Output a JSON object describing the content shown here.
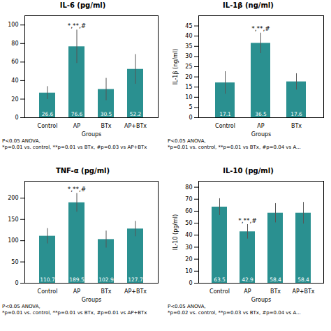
{
  "chart_data": [
    {
      "type": "bar",
      "title": "IL-6 (pg/ml)",
      "xlabel": "Groups",
      "categories": [
        "Control",
        "AP",
        "BTx",
        "AP+BTx"
      ],
      "values": [
        26.6,
        76.6,
        30.5,
        52.2
      ],
      "errors": [
        7,
        18,
        12,
        16
      ],
      "color": "#2a9090",
      "data_labels": true,
      "grid": false,
      "ylim": [
        0,
        110
      ],
      "yticks": [
        0,
        20,
        40,
        60,
        80,
        100
      ],
      "annotations": [
        {
          "text": "*,**,#",
          "x": "AP"
        },
        {
          "text": "P<0.05 ANOVA,"
        },
        {
          "text": "*p=0.01 vs. control, **p=0.01 vs BTx, #p=0.03 vs AP+BTx"
        }
      ]
    },
    {
      "type": "bar",
      "title": "IL-1β (ng/ml)",
      "ylabel": "IL-1β (ng/ml)",
      "xlabel": "Groups",
      "categories": [
        "Control",
        "AP",
        "BTx"
      ],
      "values": [
        17.1,
        36.5,
        17.6
      ],
      "errors": [
        5.5,
        5,
        4
      ],
      "color": "#2a9090",
      "data_labels": true,
      "grid": false,
      "ylim": [
        0,
        50
      ],
      "yticks": [
        0,
        5,
        10,
        15,
        20,
        25,
        30,
        35,
        40,
        45
      ],
      "annotations": [
        {
          "text": "*,**,#",
          "x": "AP"
        },
        {
          "text": "P<0.05 ANOVA,"
        },
        {
          "text": "*p=0.01 vs. control, **p=0.01 vs BTx, #p=0.04 vs A..."
        }
      ]
    },
    {
      "type": "bar",
      "title": "TNF-α (pg/ml)",
      "xlabel": "Groups",
      "categories": [
        "Control",
        "AP",
        "BTx",
        "AP+BTx"
      ],
      "values": [
        110.7,
        189.5,
        102.9,
        127.7
      ],
      "errors": [
        18,
        22,
        20,
        18
      ],
      "color": "#2a9090",
      "data_labels": true,
      "grid": false,
      "ylim": [
        0,
        240
      ],
      "yticks": [
        0,
        50,
        100,
        150,
        200
      ],
      "annotations": [
        {
          "text": "*,**,#",
          "x": "AP"
        },
        {
          "text": "P<0.05 ANOVA,"
        },
        {
          "text": "*p=0.01 vs. control, **p=0.01 vs BTx, #p=0.01 vs AP+BTx"
        }
      ]
    },
    {
      "type": "bar",
      "title": "IL-10 (pg/ml)",
      "ylabel": "IL-10 (pg/ml)",
      "xlabel": "Groups",
      "categories": [
        "Control",
        "AP",
        "BTx",
        "AP+BTx"
      ],
      "values": [
        63.5,
        42.9,
        58.4,
        58.4
      ],
      "errors": [
        7,
        6,
        8,
        9
      ],
      "color": "#2a9090",
      "data_labels": true,
      "grid": false,
      "ylim": [
        0,
        85
      ],
      "yticks": [
        0,
        10,
        20,
        30,
        40,
        50,
        60,
        70,
        80
      ],
      "annotations": [
        {
          "text": "*,**,#",
          "x": "AP"
        },
        {
          "text": "P<0.05 ANOVA,"
        },
        {
          "text": "*p=0.02 vs. control, **p=0.03 vs BTx, #p=0.04 vs A..."
        }
      ]
    }
  ]
}
